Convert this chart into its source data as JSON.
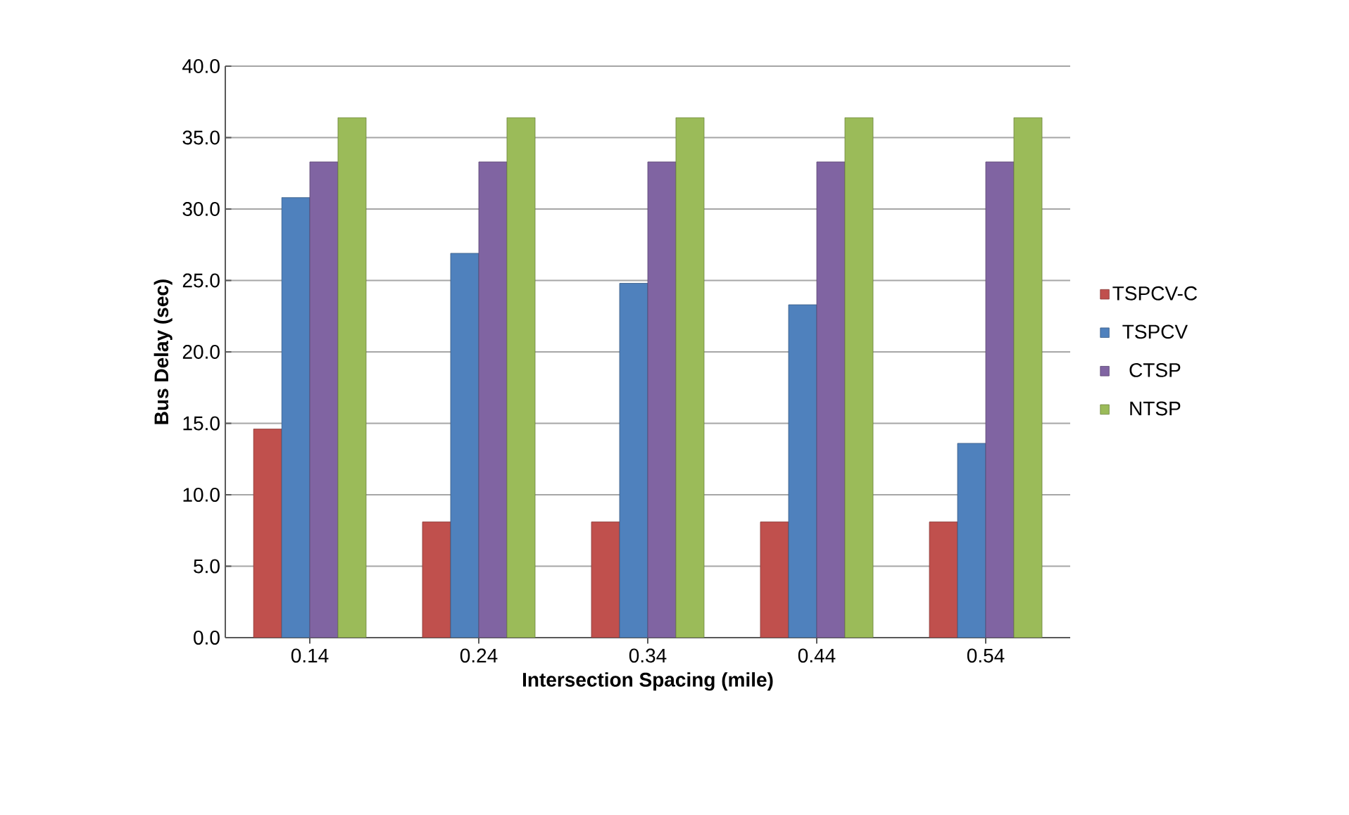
{
  "chart_data": {
    "type": "bar",
    "xlabel": "Intersection Spacing (mile)",
    "ylabel": "Bus Delay (sec)",
    "categories": [
      "0.14",
      "0.24",
      "0.34",
      "0.44",
      "0.54"
    ],
    "series": [
      {
        "name": "TSPCV-C",
        "color": "#c0504d",
        "values": [
          14.6,
          8.1,
          8.1,
          8.1,
          8.1
        ]
      },
      {
        "name": "TSPCV",
        "color": "#4f81bd",
        "values": [
          30.8,
          26.9,
          24.8,
          23.3,
          13.6
        ]
      },
      {
        "name": "CTSP",
        "color": "#8064a2",
        "values": [
          33.3,
          33.3,
          33.3,
          33.3,
          33.3
        ]
      },
      {
        "name": "NTSP",
        "color": "#9bbb59",
        "values": [
          36.4,
          36.4,
          36.4,
          36.4,
          36.4
        ]
      }
    ],
    "ylim": [
      0,
      40
    ],
    "yticks": [
      {
        "value": 0,
        "label": "0.0"
      },
      {
        "value": 5,
        "label": "5.0"
      },
      {
        "value": 10,
        "label": "10.0"
      },
      {
        "value": 15,
        "label": "15.0"
      },
      {
        "value": 20,
        "label": "20.0"
      },
      {
        "value": 25,
        "label": "25.0"
      },
      {
        "value": 30,
        "label": "30.0"
      },
      {
        "value": 35,
        "label": "35.0"
      },
      {
        "value": 40,
        "label": "40.0"
      }
    ],
    "grid": "y",
    "legend": "right"
  }
}
